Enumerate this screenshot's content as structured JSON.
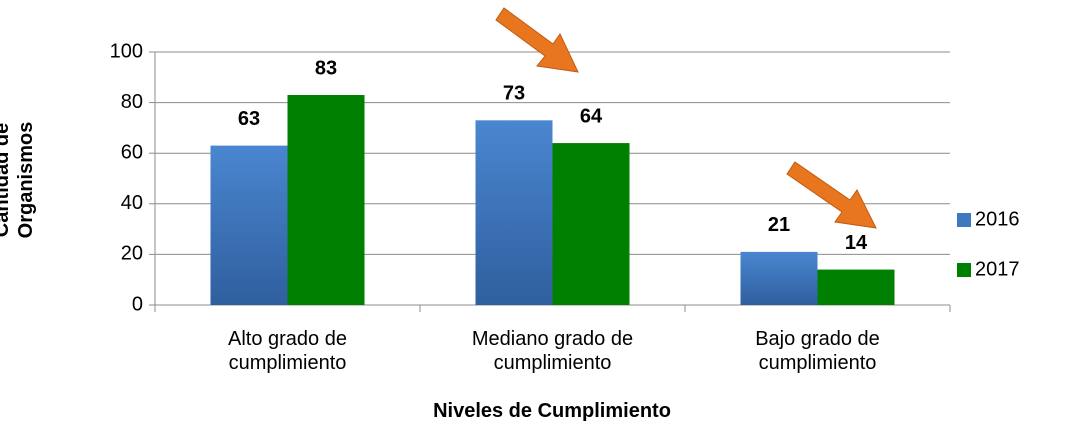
{
  "chart_data": {
    "type": "bar",
    "y_label": "Cantidad de Organismos",
    "x_label": "Niveles de Cumplimiento",
    "categories": [
      "Alto grado de cumplimiento",
      "Mediano grado de cumplimiento",
      "Bajo grado de cumplimiento"
    ],
    "series": [
      {
        "name": "2016",
        "color": "#3f77c0",
        "values": [
          63,
          73,
          21
        ]
      },
      {
        "name": "2017",
        "color": "#008000",
        "values": [
          83,
          64,
          14
        ]
      }
    ],
    "ylim": [
      0,
      100
    ],
    "yticks": [
      0,
      20,
      40,
      60,
      80,
      100
    ],
    "grid": true,
    "legend": "right"
  }
}
